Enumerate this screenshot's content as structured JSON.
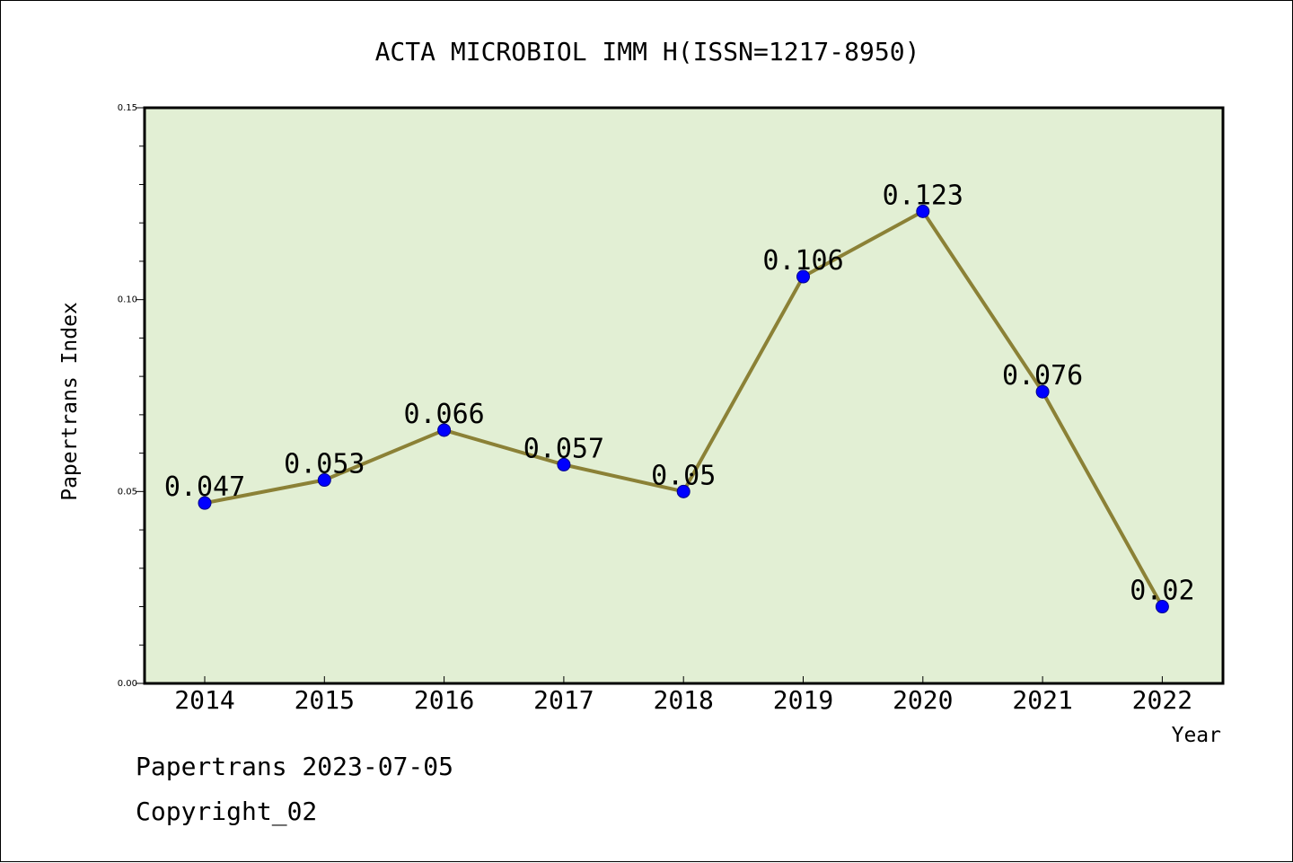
{
  "chart_data": {
    "type": "line",
    "title": "ACTA MICROBIOL IMM H(ISSN=1217-8950)",
    "xlabel": "Year",
    "ylabel": "Papertrans Index",
    "categories": [
      "2014",
      "2015",
      "2016",
      "2017",
      "2018",
      "2019",
      "2020",
      "2021",
      "2022"
    ],
    "series": [
      {
        "values": [
          0.047,
          0.053,
          0.066,
          0.057,
          0.05,
          0.106,
          0.123,
          0.076,
          0.02
        ],
        "data_labels": [
          "0.047",
          "0.053",
          "0.066",
          "0.057",
          "0.05",
          "0.106",
          "0.123",
          "0.076",
          "0.02"
        ]
      }
    ],
    "ylim": [
      0,
      0.15
    ],
    "yticks": [
      0.0,
      0.05,
      0.1,
      0.15
    ],
    "ytick_labels": [
      "0.00",
      "0.05",
      "0.10",
      "0.15"
    ],
    "grid": false,
    "colors": {
      "plot_background": "#e2efd4",
      "line": "#8b8136",
      "marker": "#0000ff",
      "marker_edge": "#00008b"
    }
  },
  "footer": {
    "date_text": "Papertrans 2023-07-05",
    "copyright_text": "Copyright_02"
  }
}
